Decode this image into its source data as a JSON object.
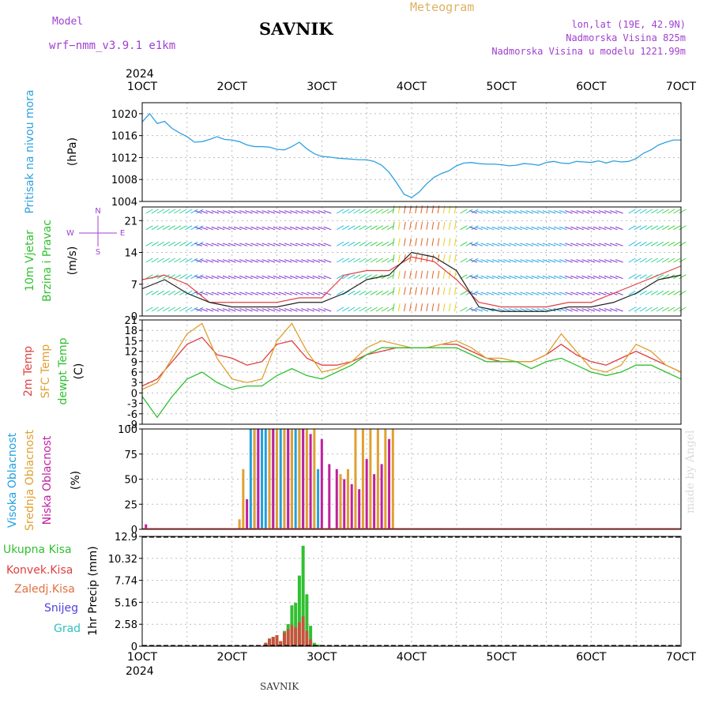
{
  "header": {
    "model_label": "Model",
    "model_value": "wrf−nmm_v3.9.1  e1km",
    "station": "SAVNIK",
    "product": "Meteogram",
    "lonlat": "lon,lat (19E, 42.9N)",
    "elevation": "Nadmorska Visina 825m",
    "model_elevation": "Nadmorska Visina u modelu 1221.99m"
  },
  "footer": {
    "station": "SAVNIK",
    "credit": "made by Angel"
  },
  "time_axis": {
    "year": "2024",
    "ticks": [
      "1OCT",
      "2OCT",
      "3OCT",
      "4OCT",
      "5OCT",
      "6OCT",
      "7OCT"
    ]
  },
  "colors": {
    "pressure": "#2ea0e0",
    "temp2m": "#e04040",
    "sfctemp": "#e0a030",
    "dewpt": "#30c030",
    "cloud_high": "#20a0e0",
    "cloud_mid": "#e0a030",
    "cloud_low": "#c020a0",
    "precip_total": "#30c030",
    "precip_conv": "#e04040",
    "label_purple": "#a040d0"
  },
  "chart_data": [
    {
      "type": "line",
      "name": "pressure",
      "ylabel": [
        "Pritisak na nivou mora",
        "(hPa)"
      ],
      "ylim": [
        1004,
        1022
      ],
      "yticks": [
        1004,
        1008,
        1012,
        1016,
        1020
      ],
      "x": [
        0,
        2,
        4,
        6,
        8,
        10,
        12,
        14,
        16,
        18,
        20,
        22,
        24,
        26,
        28,
        30,
        32,
        34,
        36,
        38,
        40,
        42,
        44,
        46,
        48,
        50,
        52,
        54,
        56,
        58,
        60,
        62,
        64,
        66,
        68,
        70,
        72,
        74,
        76,
        78,
        80,
        82,
        84,
        86,
        88,
        90,
        92,
        94,
        96,
        98,
        100,
        102,
        104,
        106,
        108,
        110,
        112,
        114,
        116,
        118,
        120,
        122,
        124,
        126,
        128,
        130,
        132,
        134,
        136,
        138,
        140,
        142,
        144
      ],
      "values": [
        1018.5,
        1020,
        1018.2,
        1018.6,
        1017.3,
        1016.5,
        1015.8,
        1014.8,
        1014.9,
        1015.3,
        1015.8,
        1015.3,
        1015.2,
        1014.9,
        1014.3,
        1014.0,
        1014.0,
        1013.9,
        1013.5,
        1013.4,
        1014.0,
        1014.8,
        1013.6,
        1012.7,
        1012.2,
        1012.1,
        1011.9,
        1011.8,
        1011.7,
        1011.6,
        1011.6,
        1011.3,
        1010.6,
        1009.3,
        1007.4,
        1005.3,
        1004.7,
        1005.7,
        1007.2,
        1008.4,
        1009.1,
        1009.6,
        1010.5,
        1011.0,
        1011.1,
        1010.9,
        1010.8,
        1010.8,
        1010.7,
        1010.5,
        1010.6,
        1010.9,
        1010.8,
        1010.6,
        1011.1,
        1011.3,
        1011.0,
        1010.9,
        1011.3,
        1011.2,
        1011.1,
        1011.4,
        1011.0,
        1011.4,
        1011.2,
        1011.3,
        1011.8,
        1012.8,
        1013.4,
        1014.3,
        1014.8,
        1015.2,
        1015.2
      ]
    },
    {
      "type": "line",
      "name": "wind",
      "ylabel": [
        "10m Vjetar",
        "Brzina i Pravac",
        "(m/s)"
      ],
      "direction_legend": [
        "N",
        "S",
        "W",
        "E"
      ],
      "ylim": [
        0,
        24
      ],
      "yticks": [
        0,
        7,
        14,
        21
      ],
      "x": [
        0,
        6,
        12,
        18,
        24,
        30,
        36,
        42,
        48,
        54,
        60,
        66,
        72,
        78,
        84,
        90,
        96,
        102,
        108,
        114,
        120,
        126,
        132,
        138,
        144
      ],
      "series": [
        {
          "name": "mean",
          "values": [
            6,
            8,
            5,
            3,
            2,
            2,
            2,
            3,
            3,
            5,
            8,
            9,
            14,
            13,
            10,
            2,
            1,
            1,
            1,
            2,
            2,
            3,
            5,
            8,
            9
          ]
        },
        {
          "name": "gust",
          "values": [
            8,
            9,
            7,
            3,
            3,
            3,
            3,
            4,
            4,
            9,
            10,
            10,
            13,
            12,
            8,
            3,
            2,
            2,
            2,
            3,
            3,
            5,
            7,
            9,
            11
          ]
        }
      ]
    },
    {
      "type": "line",
      "name": "temperature",
      "ylabel": [
        "2m Temp",
        "SFC Temp",
        "dewpt Temp",
        "(C)"
      ],
      "ylim": [
        -9,
        21
      ],
      "yticks": [
        -9,
        -6,
        -3,
        0,
        3,
        6,
        9,
        12,
        15,
        18,
        21
      ],
      "x": [
        0,
        4,
        8,
        12,
        16,
        20,
        24,
        28,
        32,
        36,
        40,
        44,
        48,
        52,
        56,
        60,
        64,
        68,
        72,
        76,
        80,
        84,
        88,
        92,
        96,
        100,
        104,
        108,
        112,
        116,
        120,
        124,
        128,
        132,
        136,
        140,
        144
      ],
      "series": [
        {
          "name": "2m Temp",
          "values": [
            2,
            4,
            9,
            14,
            16,
            11,
            10,
            8,
            9,
            14,
            15,
            10,
            8,
            8,
            9,
            11,
            12,
            13,
            13,
            13,
            14,
            14,
            12,
            10,
            9,
            9,
            9,
            11,
            14,
            11,
            9,
            8,
            10,
            12,
            10,
            8,
            6
          ]
        },
        {
          "name": "SFC Temp",
          "values": [
            1,
            3,
            10,
            17,
            20,
            10,
            4,
            3,
            4,
            15,
            20,
            12,
            6,
            7,
            9,
            13,
            15,
            14,
            13,
            13,
            14,
            15,
            13,
            10,
            10,
            9,
            9,
            11,
            17,
            12,
            7,
            6,
            8,
            14,
            12,
            8,
            6
          ]
        },
        {
          "name": "dewpt Temp",
          "values": [
            -1,
            -7,
            -1,
            4,
            6,
            3,
            1,
            2,
            2,
            5,
            7,
            5,
            4,
            6,
            8,
            11,
            13,
            13,
            13,
            13,
            13,
            13,
            11,
            9,
            9,
            9,
            7,
            9,
            10,
            8,
            6,
            5,
            6,
            8,
            8,
            6,
            4
          ]
        }
      ]
    },
    {
      "type": "bar",
      "name": "cloud",
      "ylabel": [
        "Visoka Oblacnost",
        "Srednja Oblacnost",
        "Niska Oblacnost",
        "(%)"
      ],
      "ylim": [
        0,
        100
      ],
      "yticks": [
        0,
        25,
        50,
        75,
        100
      ],
      "series": [
        {
          "name": "Visoka Oblacnost",
          "x": [
            29,
            30,
            31,
            32,
            33,
            34,
            35,
            36,
            37,
            38,
            39,
            40,
            41,
            42,
            43,
            47
          ],
          "values": [
            100,
            100,
            100,
            100,
            100,
            100,
            100,
            100,
            100,
            100,
            100,
            100,
            100,
            100,
            100,
            60
          ]
        },
        {
          "name": "Srednja Oblacnost",
          "x": [
            26,
            27,
            30,
            34,
            36,
            38,
            40,
            42,
            44,
            46,
            53,
            55,
            57,
            59,
            61,
            63,
            65,
            67
          ],
          "values": [
            10,
            60,
            100,
            100,
            100,
            100,
            100,
            100,
            100,
            100,
            55,
            60,
            100,
            100,
            100,
            100,
            100,
            100
          ]
        },
        {
          "name": "Niska Oblacnost",
          "x": [
            1,
            28,
            31,
            35,
            39,
            43,
            45,
            48,
            50,
            52,
            54,
            56,
            58,
            60,
            62,
            64,
            66
          ],
          "values": [
            5,
            30,
            100,
            100,
            100,
            100,
            95,
            90,
            65,
            60,
            50,
            45,
            40,
            70,
            55,
            65,
            90
          ]
        }
      ]
    },
    {
      "type": "bar",
      "name": "precipitation",
      "ylabel": [
        "Ukupna Kisa",
        "Konvek.Kisa",
        "Zaledj.Kisa",
        "Snijeg",
        "Grad",
        "1hr Precip (mm)"
      ],
      "ylim": [
        0,
        12.9
      ],
      "yticks": [
        "0",
        "2.58",
        "5.16",
        "7.74",
        "10.32",
        "12.9"
      ],
      "series": [
        {
          "name": "Ukupna Kisa",
          "x": [
            33,
            34,
            35,
            36,
            37,
            38,
            39,
            40,
            41,
            42,
            43,
            44,
            45,
            46,
            47
          ],
          "values": [
            0.4,
            0.9,
            1.1,
            1.3,
            0.6,
            1.8,
            2.6,
            4.8,
            5.1,
            8.3,
            11.8,
            6.1,
            2.4,
            0.4,
            0.2
          ]
        },
        {
          "name": "Konvek.Kisa",
          "x": [
            33,
            34,
            35,
            36,
            37,
            38,
            39,
            40,
            41,
            42,
            43,
            44,
            45
          ],
          "values": [
            0.4,
            0.9,
            1.1,
            1.3,
            0.6,
            1.6,
            2.0,
            2.5,
            2.2,
            2.8,
            3.5,
            1.8,
            0.8
          ]
        }
      ]
    }
  ]
}
